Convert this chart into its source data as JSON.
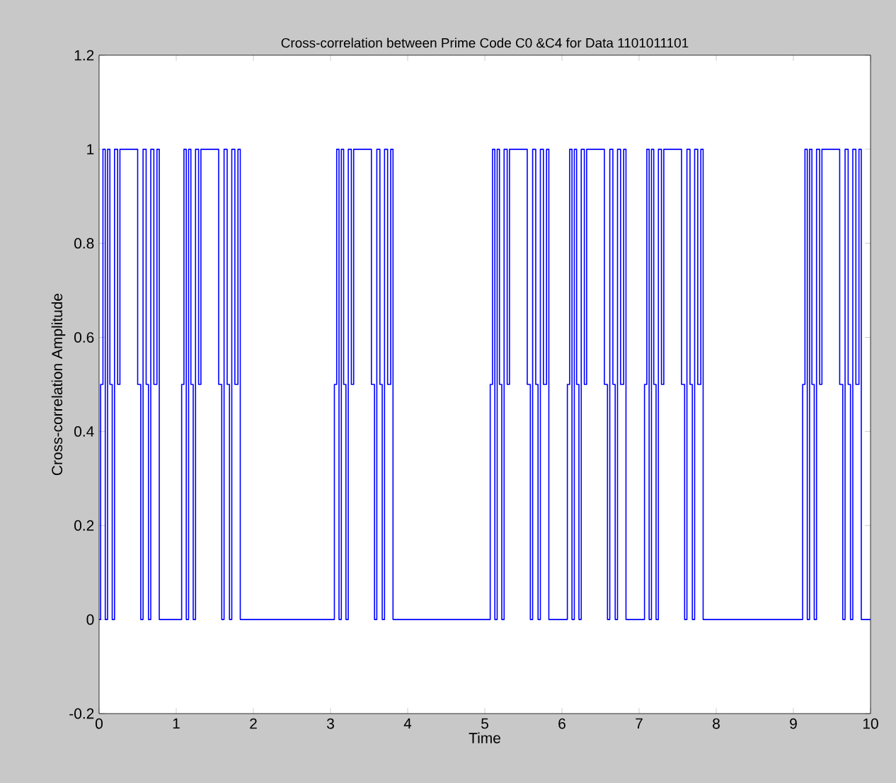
{
  "chart_data": {
    "type": "step",
    "title": "Cross-correlation between Prime  Code C0 &C4 for Data 1101011101",
    "xlabel": "Time",
    "ylabel": "Cross-correlation Amplitude",
    "color": "#0000ff",
    "x": [
      0,
      0.02,
      0.05,
      0.08,
      0.11,
      0.14,
      0.17,
      0.2,
      0.24,
      0.27,
      0.5,
      0.54,
      0.57,
      0.61,
      0.64,
      0.67,
      0.71,
      0.75,
      0.78,
      1.07,
      1.1,
      1.13,
      1.16,
      1.19,
      1.22,
      1.25,
      1.29,
      1.32,
      1.55,
      1.59,
      1.62,
      1.66,
      1.69,
      1.72,
      1.76,
      1.8,
      1.83,
      3.05,
      3.08,
      3.11,
      3.14,
      3.17,
      3.2,
      3.23,
      3.27,
      3.3,
      3.53,
      3.57,
      3.6,
      3.64,
      3.67,
      3.7,
      3.74,
      3.78,
      3.81,
      5.07,
      5.1,
      5.13,
      5.16,
      5.19,
      5.22,
      5.25,
      5.29,
      5.32,
      5.55,
      5.59,
      5.62,
      5.66,
      5.69,
      5.72,
      5.76,
      5.8,
      5.83,
      6.07,
      6.1,
      6.13,
      6.16,
      6.19,
      6.22,
      6.25,
      6.29,
      6.32,
      6.55,
      6.59,
      6.62,
      6.66,
      6.69,
      6.72,
      6.76,
      6.8,
      6.83,
      7.07,
      7.1,
      7.13,
      7.16,
      7.19,
      7.22,
      7.25,
      7.29,
      7.32,
      7.55,
      7.59,
      7.62,
      7.66,
      7.69,
      7.72,
      7.76,
      7.8,
      7.83,
      9.12,
      9.15,
      9.18,
      9.21,
      9.24,
      9.27,
      9.3,
      9.34,
      9.37,
      9.6,
      9.64,
      9.67,
      9.71,
      9.74,
      9.77,
      9.81,
      9.85,
      9.88,
      10
    ],
    "values": [
      0,
      0.5,
      1,
      0,
      1,
      0.5,
      0,
      1,
      0.5,
      1,
      0.5,
      0,
      1,
      0.5,
      0,
      1,
      0.5,
      1,
      0,
      0.5,
      1,
      0,
      1,
      0.5,
      0,
      1,
      0.5,
      1,
      0.5,
      0,
      1,
      0.5,
      0,
      1,
      0.5,
      1,
      0,
      0.5,
      1,
      0,
      1,
      0.5,
      0,
      1,
      0.5,
      1,
      0.5,
      0,
      1,
      0.5,
      0,
      1,
      0.5,
      1,
      0,
      0.5,
      1,
      0,
      1,
      0.5,
      0,
      1,
      0.5,
      1,
      0.5,
      0,
      1,
      0.5,
      0,
      1,
      0.5,
      1,
      0,
      0.5,
      1,
      0,
      1,
      0.5,
      0,
      1,
      0.5,
      1,
      0.5,
      0,
      1,
      0.5,
      0,
      1,
      0.5,
      1,
      0,
      0.5,
      1,
      0,
      1,
      0.5,
      0,
      1,
      0.5,
      1,
      0.5,
      0,
      1,
      0.5,
      0,
      1,
      0.5,
      1,
      0,
      0.5,
      1,
      0,
      1,
      0.5,
      0,
      1,
      0.5,
      1,
      0.5,
      0,
      1,
      0.5,
      0,
      1,
      0.5,
      1,
      0,
      0
    ],
    "xlim": [
      0,
      10
    ],
    "ylim": [
      -0.2,
      1.2
    ],
    "xticks": [
      0,
      1,
      2,
      3,
      4,
      5,
      6,
      7,
      8,
      9,
      10
    ],
    "yticks": [
      -0.2,
      0,
      0.2,
      0.4,
      0.6,
      0.8,
      1,
      1.2
    ],
    "grid": false,
    "marker": "none",
    "line_style": "solid"
  }
}
